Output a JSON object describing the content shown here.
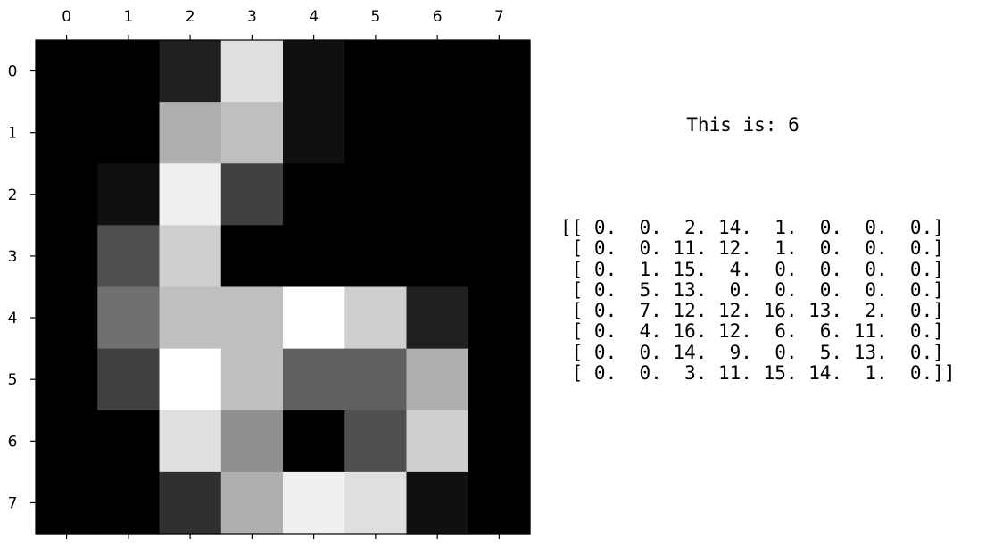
{
  "chart_data": {
    "type": "heatmap",
    "colormap": "gray",
    "vmin": 0,
    "vmax": 16,
    "x_ticks": [
      "0",
      "1",
      "2",
      "3",
      "4",
      "5",
      "6",
      "7"
    ],
    "y_ticks": [
      "0",
      "1",
      "2",
      "3",
      "4",
      "5",
      "6",
      "7"
    ],
    "x_tick_position": "top",
    "grid": false,
    "values": [
      [
        0,
        0,
        2,
        14,
        1,
        0,
        0,
        0
      ],
      [
        0,
        0,
        11,
        12,
        1,
        0,
        0,
        0
      ],
      [
        0,
        1,
        15,
        4,
        0,
        0,
        0,
        0
      ],
      [
        0,
        5,
        13,
        0,
        0,
        0,
        0,
        0
      ],
      [
        0,
        7,
        12,
        12,
        16,
        13,
        2,
        0
      ],
      [
        0,
        4,
        16,
        12,
        6,
        6,
        11,
        0
      ],
      [
        0,
        0,
        14,
        9,
        0,
        5,
        13,
        0
      ],
      [
        0,
        0,
        3,
        11,
        15,
        14,
        1,
        0
      ]
    ]
  },
  "caption": "This is: 6",
  "matrix_text": [
    "[[ 0.  0.  2. 14.  1.  0.  0.  0.]",
    " [ 0.  0. 11. 12.  1.  0.  0.  0.]",
    " [ 0.  1. 15.  4.  0.  0.  0.  0.]",
    " [ 0.  5. 13.  0.  0.  0.  0.  0.]",
    " [ 0.  7. 12. 12. 16. 13.  2.  0.]",
    " [ 0.  4. 16. 12.  6.  6. 11.  0.]",
    " [ 0.  0. 14.  9.  0.  5. 13.  0.]",
    " [ 0.  0.  3. 11. 15. 14.  1.  0.]]"
  ]
}
